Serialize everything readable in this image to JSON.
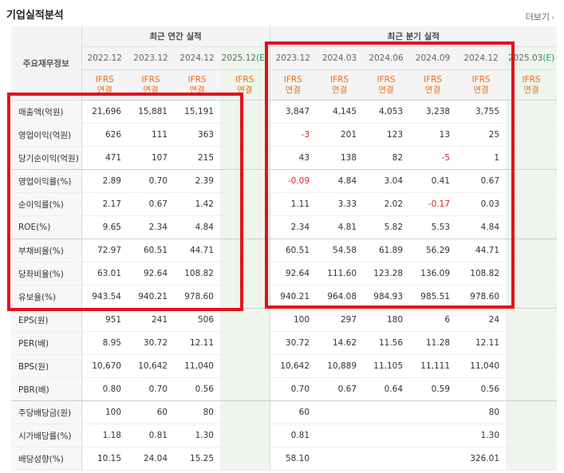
{
  "section_title": "기업실적분석",
  "more_link": "더보기",
  "header": {
    "row_label": "주요재무정보",
    "annual_label": "최근 연간 실적",
    "quarter_label": "최근 분기 실적",
    "annual_periods": [
      "2022.12",
      "2023.12",
      "2024.12",
      "2025.12(E)"
    ],
    "quarter_periods": [
      "2023.12",
      "2024.03",
      "2024.06",
      "2024.09",
      "2024.12",
      "2025.03(E)"
    ],
    "ifrs_top": "IFRS",
    "ifrs_bottom": "연결"
  },
  "rows": [
    {
      "label": "매출액(억원)",
      "annual": [
        "21,696",
        "15,881",
        "15,191",
        ""
      ],
      "quarter": [
        "3,847",
        "4,145",
        "4,053",
        "3,238",
        "3,755",
        ""
      ]
    },
    {
      "label": "영업이익(억원)",
      "annual": [
        "626",
        "111",
        "363",
        ""
      ],
      "quarter": [
        "-3",
        "201",
        "123",
        "13",
        "25",
        ""
      ]
    },
    {
      "label": "당기순이익(억원)",
      "annual": [
        "471",
        "107",
        "215",
        ""
      ],
      "quarter": [
        "43",
        "138",
        "82",
        "-5",
        "1",
        ""
      ]
    },
    {
      "label": "영업이익률(%)",
      "annual": [
        "2.89",
        "0.70",
        "2.39",
        ""
      ],
      "quarter": [
        "-0.09",
        "4.84",
        "3.04",
        "0.41",
        "0.67",
        ""
      ]
    },
    {
      "label": "순이익률(%)",
      "annual": [
        "2.17",
        "0.67",
        "1.42",
        ""
      ],
      "quarter": [
        "1.11",
        "3.33",
        "2.02",
        "-0.17",
        "0.03",
        ""
      ]
    },
    {
      "label": "ROE(%)",
      "annual": [
        "9.65",
        "2.34",
        "4.84",
        ""
      ],
      "quarter": [
        "2.34",
        "4.81",
        "5.82",
        "5.53",
        "4.84",
        ""
      ]
    },
    {
      "label": "부채비율(%)",
      "annual": [
        "72.97",
        "60.51",
        "44.71",
        ""
      ],
      "quarter": [
        "60.51",
        "54.58",
        "61.89",
        "56.29",
        "44.71",
        ""
      ]
    },
    {
      "label": "당좌비율(%)",
      "annual": [
        "63.01",
        "92.64",
        "108.82",
        ""
      ],
      "quarter": [
        "92.64",
        "111.60",
        "123.28",
        "136.09",
        "108.82",
        ""
      ]
    },
    {
      "label": "유보율(%)",
      "annual": [
        "943.54",
        "940.21",
        "978.60",
        ""
      ],
      "quarter": [
        "940.21",
        "964.08",
        "984.93",
        "985.51",
        "978.60",
        ""
      ]
    },
    {
      "label": "EPS(원)",
      "annual": [
        "951",
        "241",
        "506",
        ""
      ],
      "quarter": [
        "100",
        "297",
        "180",
        "6",
        "24",
        ""
      ]
    },
    {
      "label": "PER(배)",
      "annual": [
        "8.95",
        "30.72",
        "12.11",
        ""
      ],
      "quarter": [
        "30.72",
        "14.62",
        "11.56",
        "11.28",
        "12.11",
        ""
      ]
    },
    {
      "label": "BPS(원)",
      "annual": [
        "10,670",
        "10,642",
        "11,040",
        ""
      ],
      "quarter": [
        "10,642",
        "10,889",
        "11,105",
        "11,111",
        "11,040",
        ""
      ]
    },
    {
      "label": "PBR(배)",
      "annual": [
        "0.80",
        "0.70",
        "0.56",
        ""
      ],
      "quarter": [
        "0.70",
        "0.67",
        "0.64",
        "0.59",
        "0.56",
        ""
      ]
    },
    {
      "label": "주당배당금(원)",
      "annual": [
        "100",
        "60",
        "80",
        ""
      ],
      "quarter": [
        "60",
        "",
        "",
        "",
        "80",
        ""
      ]
    },
    {
      "label": "시가배당률(%)",
      "annual": [
        "1.18",
        "0.81",
        "1.30",
        ""
      ],
      "quarter": [
        "0.81",
        "",
        "",
        "",
        "1.30",
        ""
      ]
    },
    {
      "label": "배당성향(%)",
      "annual": [
        "10.15",
        "24.04",
        "15.25",
        ""
      ],
      "quarter": [
        "58.10",
        "",
        "",
        "",
        "326.01",
        ""
      ]
    }
  ],
  "colors": {
    "highlight_border": "#e1121c",
    "ifrs_text": "#e8701d",
    "estimate_text": "#1e9b5a",
    "negative_value": "#e02020",
    "estimate_column_bg": "#edf5ec"
  }
}
